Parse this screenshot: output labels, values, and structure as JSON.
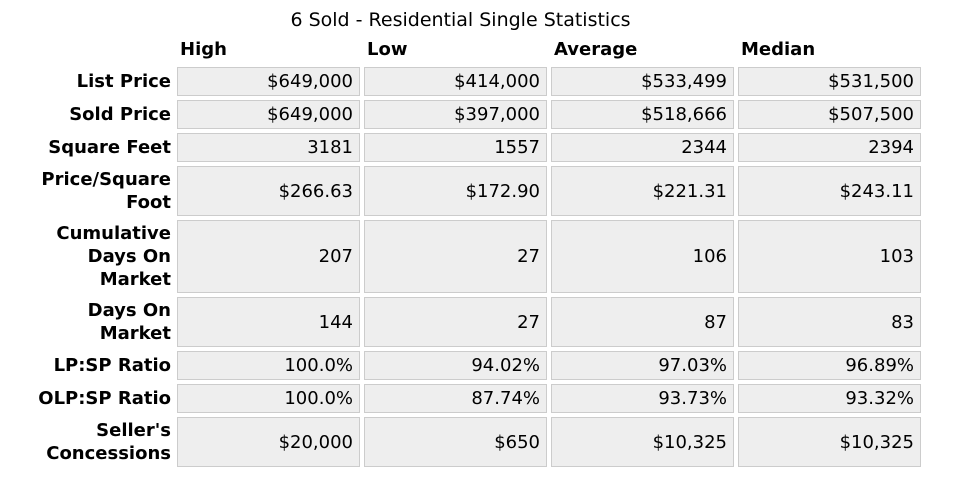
{
  "chart_data": {
    "type": "table",
    "title": "6 Sold - Residential Single Statistics",
    "columns": [
      "High",
      "Low",
      "Average",
      "Median"
    ],
    "rows": [
      {
        "label": "List Price",
        "values": [
          "$649,000",
          "$414,000",
          "$533,499",
          "$531,500"
        ]
      },
      {
        "label": "Sold Price",
        "values": [
          "$649,000",
          "$397,000",
          "$518,666",
          "$507,500"
        ]
      },
      {
        "label": "Square Feet",
        "values": [
          "3181",
          "1557",
          "2344",
          "2394"
        ]
      },
      {
        "label": "Price/Square\nFoot",
        "values": [
          "$266.63",
          "$172.90",
          "$221.31",
          "$243.11"
        ]
      },
      {
        "label": "Cumulative\nDays On\nMarket",
        "values": [
          "207",
          "27",
          "106",
          "103"
        ]
      },
      {
        "label": "Days On\nMarket",
        "values": [
          "144",
          "27",
          "87",
          "83"
        ]
      },
      {
        "label": "LP:SP Ratio",
        "values": [
          "100.0%",
          "94.02%",
          "97.03%",
          "96.89%"
        ]
      },
      {
        "label": "OLP:SP Ratio",
        "values": [
          "100.0%",
          "87.74%",
          "93.73%",
          "93.32%"
        ]
      },
      {
        "label": "Seller's\nConcessions",
        "values": [
          "$20,000",
          "$650",
          "$10,325",
          "$10,325"
        ]
      }
    ],
    "layout": {
      "grid": "off",
      "cell_background": "#eeeeee",
      "cell_border": "#cccccc",
      "text_color": "#000000",
      "background": "#ffffff"
    }
  }
}
